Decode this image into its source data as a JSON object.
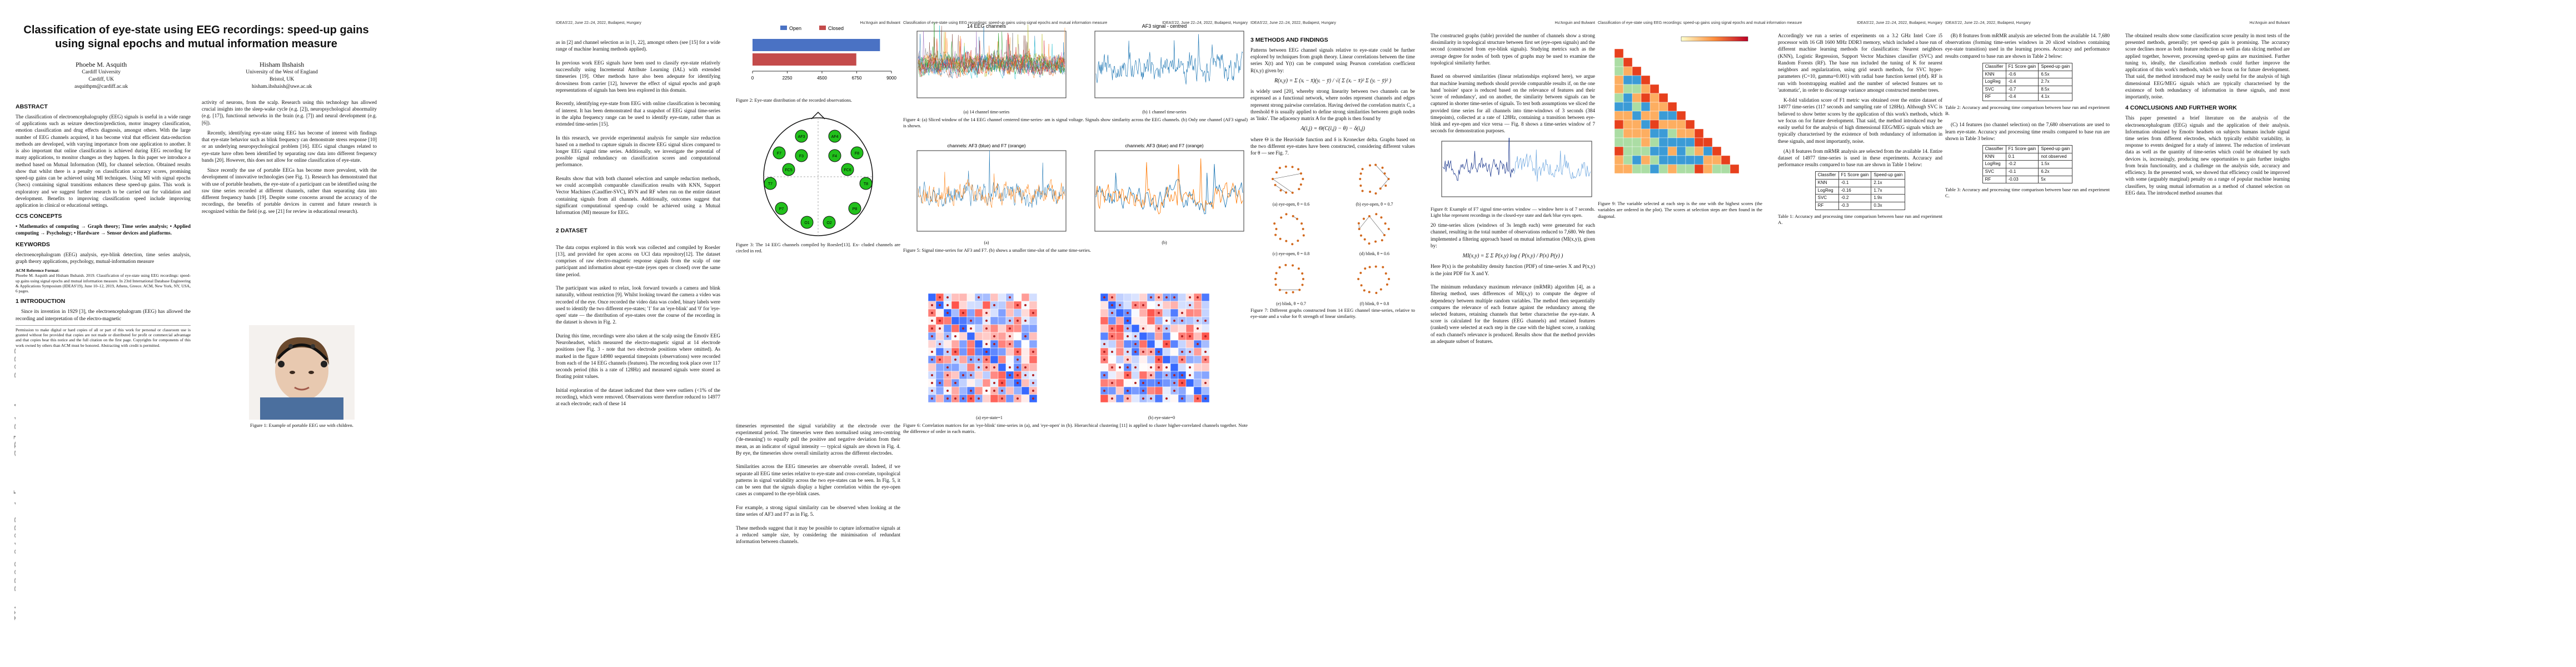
{
  "arxiv_stamp": "arXiv:2209.01023v1  [eess.SP]  31 Aug 2022",
  "running_header": {
    "conf": "IDEAS'22, June 22–24, 2022, Budapest, Hungary",
    "short_title": "Classification of eye-state using EEG recordings: speed-up gains using signal epochs and mutual information measure",
    "authors": "Hu'Anguin and Bulwant"
  },
  "page1": {
    "title": "Classification of eye-state using EEG recordings: speed-up gains using signal epochs and mutual information measure",
    "author1": {
      "name": "Phoebe M. Asquith",
      "aff": "Cardiff University",
      "city": "Cardiff, UK",
      "email": "asquithpm@cardiff.ac.uk"
    },
    "author2": {
      "name": "Hisham Ihshaish",
      "aff": "University of the West of England",
      "city": "Bristol, UK",
      "email": "hisham.ihshaish@uwe.ac.uk"
    },
    "abstract_h": "Abstract",
    "abstract": "The classification of electroencephalography (EEG) signals is useful in a wide range of applications such as seizure detection/prediction, motor imagery classification, emotion classification and drug effects diagnosis, amongst others. With the large number of EEG channels acquired, it has become vital that efficient data-reduction methods are developed, with varying importance from one application to another. It is also important that online classification is achieved during EEG recording for many applications, to monitor changes as they happen. In this paper we introduce a method based on Mutual Information (MI), for channel selection. Obtained results show that whilst there is a penalty on classification accuracy scores, promising speed-up gains can be achieved using MI techniques. Using MI with signal epochs (3secs) containing signal transitions enhances these speed-up gains. This work is exploratory and we suggest further research to be carried out for validation and development. Benefits to improving classification speed include improving application in clinical or educational settings.",
    "ccs_h": "CCS Concepts",
    "ccs": "• Mathematics of computing → Graph theory; Time series analysis; • Applied computing → Psychology; • Hardware → Sensor devices and platforms.",
    "kw_h": "Keywords",
    "kw": "electroencephalogram (EEG) analysis, eye-blink detection, time series analysis, graph theory applications, psychology, mutual-information measure",
    "acm_h": "ACM Reference Format:",
    "acm": "Phoebe M. Asquith and Hisham Ihshaish. 2019. Classification of eye-state using EEG recordings: speed-up gains using signal epochs and mutual information measure. In 23rd International Database Engineering & Applications Symposium (IDEAS'19), June 10–12, 2019, Athens, Greece. ACM, New York, NY, USA, 6 pages.",
    "intro_h": "1   Introduction",
    "intro": "Since its invention in 1929 [3], the electroencephalogram (EEG) has allowed the recording and interpretation of the electro-magnetic",
    "perm": "Permission to make digital or hard copies of all or part of this work for personal or classroom use is granted without fee provided that copies are not made or distributed for profit or commercial advantage and that copies bear this notice and the full citation on the first page. Copyrights for components of this work owned by others than ACM must be honored. Abstracting with credit is permitted.",
    "col2_a": "activity of neurons, from the scalp. Research using this technology has allowed crucial insights into the sleep-wake cycle (e.g. [2]), neuropsychological abnormality (e.g. [17]), functional networks in the brain (e.g. [7]) and neural development (e.g. [6]).",
    "col2_b": "Recently, identifying eye-state using EEG has become of interest with findings that eye-state behavior such as blink frequency can demonstrate stress response [10] or an underlying neuropsychological problem [16]. EEG signal changes related to eye-state have often been identified by separating raw data into different frequency bands [20]. However, this does not allow for online classification of eye-state.",
    "col2_c": "Since recently the use of portable EEGs has become more prevalent, with the development of innovative technologies (see Fig. 1). Research has demonstrated that with use of portable headsets, the eye-state of a participant can be identified using the raw time series recorded at different channels, rather than separating data into different frequency bands [19]. Despite some concerns around the accuracy of the recordings, the benefits of portable devices in current and future research is recognized within the field (e.g. see [21] for review in educational research).",
    "fig1_cap": "Figure 1: Example of portable EEG use with children."
  },
  "page2": {
    "c1": "as in [2] and channel selection as in [1, 22], amongst others (see [15] for a wide range of machine learning methods applied).\n\nIn previous work EEG signals have been used to classify eye-state relatively successfully using Incremental Attribute Learning (IAL) with extended timeseries [19]. Other methods have also been adequate for identifying drowsiness from carrier [12], however the effect of signal epochs and graph representations of signals has been less explored in this domain.\n\nRecently, identifying eye-state from EEG with online classification is becoming of interest. It has been demonstrated that a snapshot of EEG signal time-series in the alpha frequency range can be used to identify eye-state, rather than as extended time-series [15].\n\nIn this research, we provide experimental analysis for sample size reduction based on a method to capture signals in discrete EEG signal slices compared to longer EEG signal time series. Additionally, we investigate the potential of possible signal redundancy on classification scores and computational performance.\n\nResults show that with both channel selection and sample reduction methods, we could accomplish comparable classification results with KNN, Support Vector Machines (Caudfier-SVC), RVN and RF when run on the entire dataset containing signals from all channels. Additionally, outcomes suggest that significant computational speed-up could be achieved using a Mutual Information (MI) measure for EEG.",
    "ds_h": "2   Dataset",
    "ds": "The data corpus explored in this work was collected and compiled by Roesler [13], and provided for open access on UCI data repository[12]. The dataset comprises of raw electro-magnetic response signals from the scalp of one participant and information about eye-state (eyes open or closed) over the same time period.\n\nThe participant was asked to relax, look forward towards a camera and blink naturally, without restriction [9]. Whilst looking toward the camera a video was recorded of the eye. Once recorded the video data was coded, binary labels were used to identify the two different eye-states; '1' for an 'eye-blink' and '0' for 'eye-open' state — the distribution of eye-states over the course of the recording in the dataset is shown in Fig. 2.\n\nDuring this time, recordings were also taken at the scalp using the Emotiv EEG Neuroheadset, which measured the electro-magnetic signal at 14 electrode positions (see Fig. 3 - note that two electrode positions where omitted). As marked in the figure 14980 sequential timepoints (observations) were recorded from each of the 14 EEG channels (features). The recording took place over 117 seconds period (this is a rate of 128Hz) and measured signals were stored as floating point values.\n\nInitial exploration of the dataset indicated that there were outliers (<1% of the recording), which were removed. Observations were therefore reduced to 14977 at each electrode; each of these 14",
    "fig2": {
      "legend_open": "Open",
      "legend_closed": "Closed",
      "open_count": 8257,
      "closed_count": 6723,
      "ticks": [
        "0",
        "2250",
        "4500",
        "6750",
        "9000"
      ],
      "cap": "Figure 2: Eye-state distribution of the recorded observations."
    },
    "fig3": {
      "cap": "Figure 3: The 14 EEG channels compiled by Roesler[13]. Ex- cluded channels are circled in red.",
      "channels": [
        "AF3",
        "AF4",
        "F7",
        "F3",
        "F4",
        "F8",
        "FC5",
        "FC6",
        "T7",
        "T8",
        "P7",
        "P8",
        "O1",
        "O2"
      ]
    },
    "c2_tail": "timeseries represented the signal variability at the electrode over the experimental period. The timeseries were then normalised using zero-centring ('de-meaning') to equally pull the positive and negative deviation from their mean, as an indicator of signal intensity — typical signals are shown in Fig. 4. By eye, the timeseries show overall similarity across the different electrodes.\n\nSimilarities across the EEG timeseries are observable overall. Indeed, if we separate all EEG time series relative to eye-state and cross-correlate, topological patterns in signal variability across the two eye-states can be seen. In Fig. 5, it can be seen that the signals display a higher correlation within the eye-open cases as compared to the eye-blink cases.\n\nFor example, a strong signal similarity can be observed when looking at the time series of AF3 and F7 as in Fig. 5.\n\nThese methods suggest that it may be possible to capture informative signals at a reduced sample size, by considering the minimisation of redundant information between channels."
  },
  "page3": {
    "fig4a_title": "14 EEG channels",
    "fig4b_title": "AF3 signal - centred",
    "fig4a_sub": "(a) 14 channel time-series",
    "fig4b_sub": "(b) 1 channel time-series",
    "fig4_cap": "Figure 4: (a) Sliced window of the 14 EEG channel centered time-series- am is signal voltage. Signals show similarity across the EEG channels. (b) Only one channel (AF3 signal) is shown.",
    "fig5a_title": "channels: AF3 (blue) and F7 (orange)",
    "fig5b_title": "channels: AF3 (blue) and F7 (orange)",
    "fig5a_sub": "(a)",
    "fig5b_sub": "(b)",
    "fig5_cap": "Figure 5: Signal time-series for AF3 and F7. (b) shows a smaller time-slot of the same time-series.",
    "fig6a_sub": "(a) eye-state=1",
    "fig6b_sub": "(b) eye-state=0",
    "fig6_cap": "Figure 6: Correlation matrices for an 'eye-blink' time-series in (a), and 'eye-open' in (b). Hierarchical clustering [11] is applied to cluster higher-correlated channels together. Note the difference of order in each matrix."
  },
  "page4": {
    "methods_h": "3   Methods and Findings",
    "m1": "Patterns between EEG channel signals relative to eye-state could be further explored by techniques from graph theory. Linear correlations between the time series X(t) and Y(t) can be computed using Pearson correlation coefficient R(x,y) given by:",
    "eq1": "R(x,y) = Σ (xᵢ − x̄)(yᵢ − ȳ) / √( Σ (xᵢ − x̄)² Σ (yᵢ − ȳ)² )",
    "m2": "is widely used [20], whereby strong linearity between two channels can be expressed as a functional network, where nodes represent channels and edges represent strong pairwise correlation. Having derived the correlation matrix C, a threshold θ is usually applied to define strong similarities between graph nodes as 'links'. The adjacency matrix A for the graph is then found by",
    "eq2": "A(i,j) = Θ(C(i,j) − θ) − δ(i,j)",
    "m3": "where Θ is the Heaviside function and δ is Kronecker delta. Graphs based on the two different eye-states have been constructed, considering different values for θ — see Fig. 7.",
    "g_subs": [
      "(a) eye-open, θ = 0.6",
      "(b) eye-open, θ = 0.7",
      "(c) eye-open, θ = 0.8",
      "(d) blink, θ = 0.6",
      "(e) blink, θ = 0.7",
      "(f) blink, θ = 0.8"
    ],
    "fig7_cap": "Figure 7: Different graphs constructed from 14 EEG channel time-series, relative to eye-state and a value for θ: strength of linear similarity.",
    "c2a": "The constructed graphs (table) provided the number of channels show a strong dissimilarity in topological structure between first set (eye-open signals) and the second (constructed from eye-blink signals). Studying metrics such as the average degree for nodes of both types of graphs may be used to examine the topological similarity further.\n\nBased on observed similarities (linear relationships explored here), we argue that machine learning methods should provide comparable results if, on the one hand 'noisier' space is reduced based on the relevance of features and their 'score of redundancy', and on another, the similarity between signals can be captured in shorter time-series of signals. To test both assumptions we sliced the provided time series for all channels into time-windows of 3 seconds (384 timepoints), collected at a rate of 128Hz, containing a transition between eye-blink and eye-open and vice versa — Fig. 8 shows a time-series window of 7 seconds for demonstration purposes.",
    "fig8_cap": "Figure 8: Example of F7 signal time-series window — window here is of 7 seconds. Light blue represent recordings in the closed-eye state and dark blue eyes open.",
    "c2b": "20 time-series slices (windows of 3s length each) were generated for each channel, resulting in the total number of observations reduced to 7,680. We then implemented a filtering approach based on mutual information (MI(x,y)), given by:",
    "eq3": "MI(x,y) = Σ Σ P(x,y) log ( P(x,y) / P(x) P(y) )",
    "c2c": "Here P(x) is the probability density function (PDF) of time-series X and P(x,y) is the joint PDF for X and Y.\n\nThe minimum redundancy maximum relevance (mRMR) algorithm [4], as a filtering method, uses differences of MI(x,y) to compute the degree of dependency between multiple random variables. The method then sequentially compares the relevance of each feature against the redundancy among the selected features, retaining channels that better characterise the eye-state. A score is calculated for the features (EEG channels) and retained features (ranked) were selected at each step in the case with the highest score, a ranking of each channel's relevance is produced. Results show that the method provides an adequate subset of features."
  },
  "page5": {
    "fig9_cap": "Figure 9: The variable selected at each step is the one with the highest scores (the variables are ordered in the plot). The scores at selection steps are then found in the diagonal.",
    "p1": "Accordingly we run a series of experiments on a 3.2 GHz Intel Core i5 processor with 16 GB 1600 MHz DDR3 memory, which included a base run of different machine learning methods for classification: Nearest neighbors (KNN), Logistic Regression, Support Vector Machines classifier (SVC) and Random Forests (RF). The base run included the tuning of K for nearest neighbors and regularization, using grid search methods, for SVC hyper-parameters (C=10, gamma=0.001) with radial base function kernel (rbf). RF is run with bootstrapping enabled and the number of selected features set to 'automatic', in order to discourage variance amongst constructed member trees.",
    "p2": "K-fold validation score of F1 metric was obtained over the entire dataset of 14977 time-series (117 seconds and sampling rate of 128Hz). Although SVC is believed to show better scores by the application of this work's methods, which we focus on for future development. That said, the method introduced may be easily useful for the analysis of high dimensional EEG/MEG signals which are typically characterised by the existence of both redundancy of information in these signals, and most importantly, noise.",
    "a_item": "(A) 8 features from mRMR analysis are selected from the available 14. Entire dataset of 14977 time-series is used in these experiments. Accuracy and performance results compared to base run are shown in Table 1 below:",
    "table1": {
      "headers": [
        "Classifier",
        "F1 Score gain",
        "Speed-up gain"
      ],
      "rows": [
        [
          "KNN",
          "-0.1",
          "2.1x"
        ],
        [
          "LogReg",
          "-0.16",
          "1.7x"
        ],
        [
          "SVC",
          "-0.2",
          "1.9x"
        ],
        [
          "RF",
          "-0.3",
          "0.3x"
        ]
      ]
    },
    "table1_cap": "Table 1: Accuracy and processing time comparison between base run and experiment A."
  },
  "page6": {
    "b_item": "(B) 8 features from mRMR analysis are selected from the available 14. 7,680 observations (forming time-series windows in 20 sliced windows containing eye-state transition) used in the learning process. Accuracy and performance results compared to base run are shown in Table 2 below:",
    "table2": {
      "headers": [
        "Classifier",
        "F1 Score gain",
        "Speed-up gain"
      ],
      "rows": [
        [
          "KNN",
          "-0.6",
          "6.5x"
        ],
        [
          "LogReg",
          "-0.4",
          "2.7x"
        ],
        [
          "SVC",
          "-0.7",
          "8.5x"
        ],
        [
          "RF",
          "-0.4",
          "4.1x"
        ]
      ]
    },
    "table2_cap": "Table 2: Accuracy and processing time comparison between base run and experiment B.",
    "c_item": "(C) 14 features (no channel selection) on the 7,680 observations are used to learn eye-state. Accuracy and processing time results compared to base run are shown in Table 3 below:",
    "table3": {
      "headers": [
        "Classifier",
        "F1 Score gain",
        "Speed-up gain"
      ],
      "rows": [
        [
          "KNN",
          "0.1",
          "not observed"
        ],
        [
          "LogReg",
          "-0.2",
          "1.5x"
        ],
        [
          "SVC",
          "-0.1",
          "6.2x"
        ],
        [
          "RF",
          "-0.03",
          "5x"
        ]
      ]
    },
    "table3_cap": "Table 3: Accuracy and processing time comparison between base run and experiment C.",
    "p1": "The obtained results show some classification score penalty in most tests of the presented methods, generally; yet speed-up gain is promising. The accuracy score declines more as both feature reduction as well as data slicing method are applied together, however, processing speed-up gains are maximised. Further tuning to, ideally, the classification methods could further improve the application of this work's methods, which we focus on for future development. That said, the method introduced may be easily useful for the analysis of high dimensional EEG/MEG signals which are typically characterised by the existence of both redundancy of information in these signals, and most importantly, noise.",
    "conc_h": "4   Conclusions and Further Work",
    "p2": "This paper presented a brief literature on the analysis of the electroencephalogram (EEG) signals and the application of their analysis. Information obtained by Emotiv headsets on subjects humans include signal time series from different electrodes, which typically exhibit variability, in response to events designed for a study of interest. The reduction of irrelevant data as well as the quantity of time-series which could be obtained by such devices is, increasingly, producing new opportunities to gain further insights from brain functionality, and a challenge on the analysis side, accuracy and efficiency. In the presented work, we showed that efficiency could be improved with some (arguably marginal) penalty on a range of popular machine learning classifiers, by using mutual information as a method of channel selection on EEG data. The introduced method assumes that"
  }
}
